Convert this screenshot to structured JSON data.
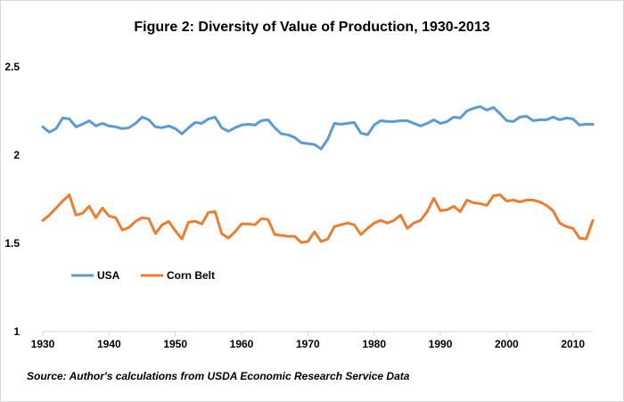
{
  "chart_data": {
    "type": "line",
    "title": "Figure 2: Diversity of Value of Production, 1930-2013",
    "xlabel": "",
    "ylabel": "",
    "xlim": [
      1930,
      2013
    ],
    "ylim": [
      1,
      2.5
    ],
    "x_ticks": [
      "1930",
      "1940",
      "1950",
      "1960",
      "1970",
      "1980",
      "1990",
      "2000",
      "2010"
    ],
    "y_ticks": [
      "2.5",
      "2",
      "1.5",
      "1"
    ],
    "grid": false,
    "legend_position": "left-middle",
    "x": [
      1930,
      1931,
      1932,
      1933,
      1934,
      1935,
      1936,
      1937,
      1938,
      1939,
      1940,
      1941,
      1942,
      1943,
      1944,
      1945,
      1946,
      1947,
      1948,
      1949,
      1950,
      1951,
      1952,
      1953,
      1954,
      1955,
      1956,
      1957,
      1958,
      1959,
      1960,
      1961,
      1962,
      1963,
      1964,
      1965,
      1966,
      1967,
      1968,
      1969,
      1970,
      1971,
      1972,
      1973,
      1974,
      1975,
      1976,
      1977,
      1978,
      1979,
      1980,
      1981,
      1982,
      1983,
      1984,
      1985,
      1986,
      1987,
      1988,
      1989,
      1990,
      1991,
      1992,
      1993,
      1994,
      1995,
      1996,
      1997,
      1998,
      1999,
      2000,
      2001,
      2002,
      2003,
      2004,
      2005,
      2006,
      2007,
      2008,
      2009,
      2010,
      2011,
      2012,
      2013
    ],
    "series": [
      {
        "name": "USA",
        "color": "#5b9bd5",
        "values": [
          2.16,
          2.13,
          2.15,
          2.21,
          2.205,
          2.16,
          2.175,
          2.195,
          2.165,
          2.18,
          2.165,
          2.16,
          2.15,
          2.155,
          2.18,
          2.215,
          2.2,
          2.16,
          2.155,
          2.165,
          2.15,
          2.12,
          2.155,
          2.185,
          2.18,
          2.205,
          2.215,
          2.155,
          2.135,
          2.155,
          2.17,
          2.175,
          2.17,
          2.195,
          2.2,
          2.155,
          2.12,
          2.115,
          2.1,
          2.07,
          2.065,
          2.06,
          2.035,
          2.09,
          2.18,
          2.175,
          2.18,
          2.185,
          2.125,
          2.115,
          2.17,
          2.195,
          2.19,
          2.19,
          2.195,
          2.195,
          2.18,
          2.165,
          2.18,
          2.2,
          2.18,
          2.19,
          2.215,
          2.21,
          2.25,
          2.265,
          2.275,
          2.255,
          2.27,
          2.235,
          2.195,
          2.19,
          2.215,
          2.22,
          2.195,
          2.2,
          2.2,
          2.215,
          2.2,
          2.21,
          2.205,
          2.17,
          2.175,
          2.175
        ]
      },
      {
        "name": "Corn Belt",
        "color": "#ed7d31",
        "values": [
          1.63,
          1.66,
          1.7,
          1.74,
          1.775,
          1.66,
          1.67,
          1.71,
          1.645,
          1.7,
          1.655,
          1.645,
          1.575,
          1.59,
          1.625,
          1.645,
          1.64,
          1.555,
          1.605,
          1.625,
          1.57,
          1.525,
          1.62,
          1.625,
          1.61,
          1.675,
          1.68,
          1.555,
          1.53,
          1.565,
          1.61,
          1.61,
          1.605,
          1.64,
          1.635,
          1.55,
          1.545,
          1.54,
          1.54,
          1.505,
          1.51,
          1.565,
          1.51,
          1.525,
          1.595,
          1.605,
          1.615,
          1.605,
          1.55,
          1.585,
          1.615,
          1.63,
          1.615,
          1.63,
          1.66,
          1.585,
          1.615,
          1.63,
          1.68,
          1.755,
          1.685,
          1.69,
          1.71,
          1.68,
          1.745,
          1.73,
          1.725,
          1.715,
          1.77,
          1.775,
          1.74,
          1.745,
          1.735,
          1.745,
          1.745,
          1.735,
          1.715,
          1.685,
          1.615,
          1.595,
          1.585,
          1.53,
          1.525,
          1.63
        ]
      }
    ],
    "source": "Source: Author's calculations from USDA Economic Research Service Data"
  }
}
